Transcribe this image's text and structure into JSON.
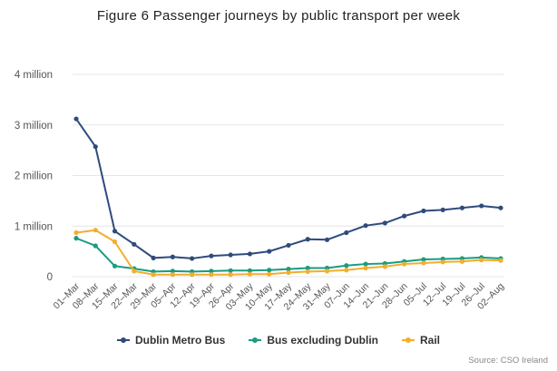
{
  "chart_data": {
    "type": "line",
    "title": "Figure 6 Passenger journeys by public transport per week",
    "xlabel": "",
    "ylabel": "",
    "ylim": [
      0,
      4000000
    ],
    "yticks": [
      {
        "value": 0,
        "label": "0"
      },
      {
        "value": 1000000,
        "label": "1 million"
      },
      {
        "value": 2000000,
        "label": "2 million"
      },
      {
        "value": 3000000,
        "label": "3 million"
      },
      {
        "value": 4000000,
        "label": "4 million"
      }
    ],
    "grid": true,
    "legend_position": "bottom",
    "categories": [
      "01–Mar",
      "08–Mar",
      "15–Mar",
      "22–Mar",
      "29–Mar",
      "05–Apr",
      "12–Apr",
      "19–Apr",
      "26–Apr",
      "03–May",
      "10–May",
      "17–May",
      "24–May",
      "31–May",
      "07–Jun",
      "14–Jun",
      "21–Jun",
      "28–Jun",
      "05–Jul",
      "12–Jul",
      "19–Jul",
      "26–Jul",
      "02–Aug"
    ],
    "series": [
      {
        "name": "Dublin Metro Bus",
        "color": "#2f4b7c",
        "values": [
          3120000,
          2570000,
          900000,
          640000,
          370000,
          390000,
          360000,
          410000,
          430000,
          450000,
          500000,
          620000,
          740000,
          730000,
          870000,
          1010000,
          1060000,
          1200000,
          1300000,
          1320000,
          1360000,
          1400000,
          1360000
        ]
      },
      {
        "name": "Bus excluding Dublin",
        "color": "#1a9c80",
        "values": [
          760000,
          610000,
          210000,
          160000,
          100000,
          110000,
          100000,
          110000,
          120000,
          120000,
          130000,
          150000,
          170000,
          170000,
          220000,
          250000,
          260000,
          300000,
          340000,
          350000,
          360000,
          380000,
          360000
        ]
      },
      {
        "name": "Rail",
        "color": "#f2ae2e",
        "values": [
          870000,
          920000,
          690000,
          110000,
          40000,
          40000,
          40000,
          40000,
          40000,
          50000,
          50000,
          80000,
          100000,
          110000,
          130000,
          170000,
          200000,
          250000,
          270000,
          290000,
          300000,
          330000,
          320000
        ]
      }
    ],
    "credits": "Source: CSO Ireland"
  }
}
